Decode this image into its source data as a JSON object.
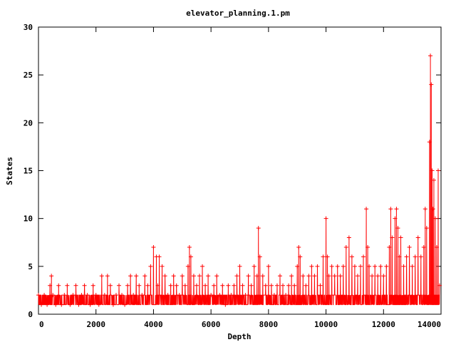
{
  "chart_data": {
    "type": "line",
    "title": "elevator_planning.1.pm",
    "xlabel": "Depth",
    "ylabel": "States",
    "xlim": [
      0,
      14000
    ],
    "ylim": [
      0,
      30
    ],
    "xticks": [
      0,
      2000,
      4000,
      6000,
      8000,
      10000,
      12000,
      14000
    ],
    "yticks": [
      0,
      5,
      10,
      15,
      20,
      25,
      30
    ],
    "grid": false,
    "legend": "none",
    "series_color": "#ff0000",
    "marker": "plus",
    "series": [
      {
        "values_description_points": [
          [
            0,
            2
          ],
          [
            100,
            1
          ],
          [
            200,
            2
          ],
          [
            300,
            1
          ],
          [
            400,
            3
          ],
          [
            450,
            4
          ],
          [
            500,
            2
          ],
          [
            600,
            1
          ],
          [
            700,
            3
          ],
          [
            800,
            1
          ],
          [
            900,
            2
          ],
          [
            1000,
            3
          ],
          [
            1100,
            1
          ],
          [
            1200,
            2
          ],
          [
            1300,
            3
          ],
          [
            1400,
            1
          ],
          [
            1500,
            2
          ],
          [
            1600,
            3
          ],
          [
            1700,
            2
          ],
          [
            1800,
            1
          ],
          [
            1900,
            3
          ],
          [
            2000,
            2
          ],
          [
            2100,
            1
          ],
          [
            2200,
            4
          ],
          [
            2300,
            2
          ],
          [
            2400,
            4
          ],
          [
            2500,
            3
          ],
          [
            2600,
            1
          ],
          [
            2700,
            2
          ],
          [
            2800,
            3
          ],
          [
            2900,
            2
          ],
          [
            3000,
            1
          ],
          [
            3100,
            3
          ],
          [
            3200,
            4
          ],
          [
            3300,
            2
          ],
          [
            3400,
            4
          ],
          [
            3500,
            3
          ],
          [
            3600,
            2
          ],
          [
            3700,
            4
          ],
          [
            3800,
            3
          ],
          [
            3900,
            5
          ],
          [
            4000,
            7
          ],
          [
            4100,
            6
          ],
          [
            4150,
            3
          ],
          [
            4200,
            6
          ],
          [
            4300,
            5
          ],
          [
            4400,
            4
          ],
          [
            4500,
            2
          ],
          [
            4600,
            3
          ],
          [
            4700,
            4
          ],
          [
            4800,
            3
          ],
          [
            4900,
            2
          ],
          [
            5000,
            4
          ],
          [
            5100,
            3
          ],
          [
            5200,
            5
          ],
          [
            5250,
            7
          ],
          [
            5300,
            6
          ],
          [
            5400,
            4
          ],
          [
            5500,
            3
          ],
          [
            5600,
            4
          ],
          [
            5700,
            5
          ],
          [
            5800,
            3
          ],
          [
            5900,
            4
          ],
          [
            6000,
            2
          ],
          [
            6100,
            3
          ],
          [
            6200,
            4
          ],
          [
            6300,
            2
          ],
          [
            6400,
            3
          ],
          [
            6500,
            1
          ],
          [
            6600,
            3
          ],
          [
            6700,
            2
          ],
          [
            6800,
            3
          ],
          [
            6900,
            4
          ],
          [
            7000,
            5
          ],
          [
            7100,
            3
          ],
          [
            7200,
            2
          ],
          [
            7300,
            4
          ],
          [
            7400,
            3
          ],
          [
            7500,
            5
          ],
          [
            7600,
            4
          ],
          [
            7650,
            9
          ],
          [
            7700,
            6
          ],
          [
            7800,
            4
          ],
          [
            7900,
            3
          ],
          [
            8000,
            5
          ],
          [
            8100,
            3
          ],
          [
            8200,
            2
          ],
          [
            8300,
            3
          ],
          [
            8400,
            4
          ],
          [
            8500,
            3
          ],
          [
            8600,
            2
          ],
          [
            8700,
            3
          ],
          [
            8800,
            4
          ],
          [
            8900,
            3
          ],
          [
            9000,
            5
          ],
          [
            9050,
            7
          ],
          [
            9100,
            6
          ],
          [
            9200,
            4
          ],
          [
            9300,
            3
          ],
          [
            9400,
            4
          ],
          [
            9500,
            5
          ],
          [
            9600,
            4
          ],
          [
            9700,
            5
          ],
          [
            9800,
            3
          ],
          [
            9900,
            6
          ],
          [
            10000,
            10
          ],
          [
            10050,
            6
          ],
          [
            10100,
            4
          ],
          [
            10200,
            5
          ],
          [
            10300,
            4
          ],
          [
            10400,
            5
          ],
          [
            10500,
            4
          ],
          [
            10600,
            5
          ],
          [
            10700,
            7
          ],
          [
            10800,
            8
          ],
          [
            10900,
            6
          ],
          [
            11000,
            5
          ],
          [
            11100,
            4
          ],
          [
            11200,
            5
          ],
          [
            11300,
            6
          ],
          [
            11400,
            11
          ],
          [
            11450,
            7
          ],
          [
            11500,
            5
          ],
          [
            11600,
            4
          ],
          [
            11700,
            5
          ],
          [
            11800,
            4
          ],
          [
            11900,
            5
          ],
          [
            12000,
            4
          ],
          [
            12100,
            5
          ],
          [
            12200,
            7
          ],
          [
            12250,
            11
          ],
          [
            12300,
            8
          ],
          [
            12400,
            10
          ],
          [
            12450,
            11
          ],
          [
            12500,
            9
          ],
          [
            12550,
            6
          ],
          [
            12600,
            8
          ],
          [
            12700,
            5
          ],
          [
            12800,
            6
          ],
          [
            12900,
            7
          ],
          [
            13000,
            5
          ],
          [
            13100,
            6
          ],
          [
            13200,
            8
          ],
          [
            13300,
            6
          ],
          [
            13400,
            7
          ],
          [
            13450,
            11
          ],
          [
            13500,
            9
          ],
          [
            13600,
            18
          ],
          [
            13630,
            27
          ],
          [
            13660,
            24
          ],
          [
            13690,
            15
          ],
          [
            13720,
            11
          ],
          [
            13750,
            14
          ],
          [
            13800,
            10
          ],
          [
            13850,
            7
          ],
          [
            13900,
            15
          ],
          [
            13950,
            3
          ]
        ]
      }
    ]
  }
}
